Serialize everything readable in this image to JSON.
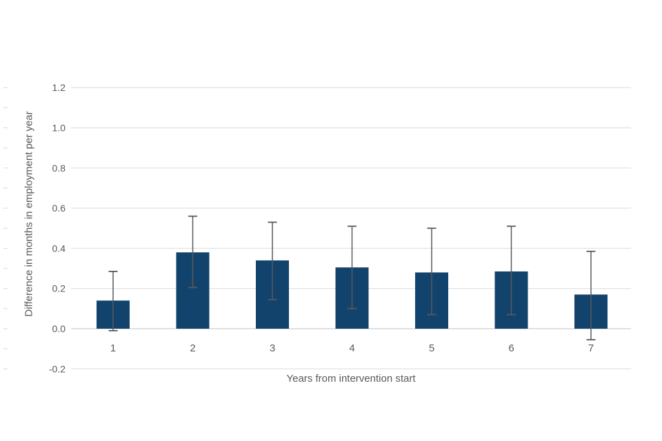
{
  "chart_data": {
    "type": "bar",
    "title": "",
    "xlabel": "Years from intervention start",
    "ylabel": "Difference in months in employment per year",
    "categories": [
      "1",
      "2",
      "3",
      "4",
      "5",
      "6",
      "7"
    ],
    "series": [
      {
        "name": "Difference in months in employment per year",
        "values": [
          0.14,
          0.38,
          0.34,
          0.305,
          0.28,
          0.285,
          0.17
        ],
        "error_low": [
          -0.01,
          0.205,
          0.145,
          0.1,
          0.07,
          0.07,
          -0.055
        ],
        "error_high": [
          0.285,
          0.56,
          0.53,
          0.51,
          0.5,
          0.51,
          0.385
        ]
      }
    ],
    "ylim": [
      -0.2,
      1.2
    ],
    "ytick_step": 0.2,
    "ytick_labels": [
      "-0.2",
      "0.0",
      "0.2",
      "0.4",
      "0.6",
      "0.8",
      "1.0",
      "1.2"
    ],
    "minor_tick_step": 0.1,
    "grid": true,
    "legend_position": "none",
    "colors": {
      "bar_fill": "#12436D",
      "error_bar": "#595959",
      "gridline": "#e4e4e4",
      "zero_line": "#d6d6d6",
      "minor_tick": "#d9d9d9",
      "axis_text": "#595959"
    }
  }
}
